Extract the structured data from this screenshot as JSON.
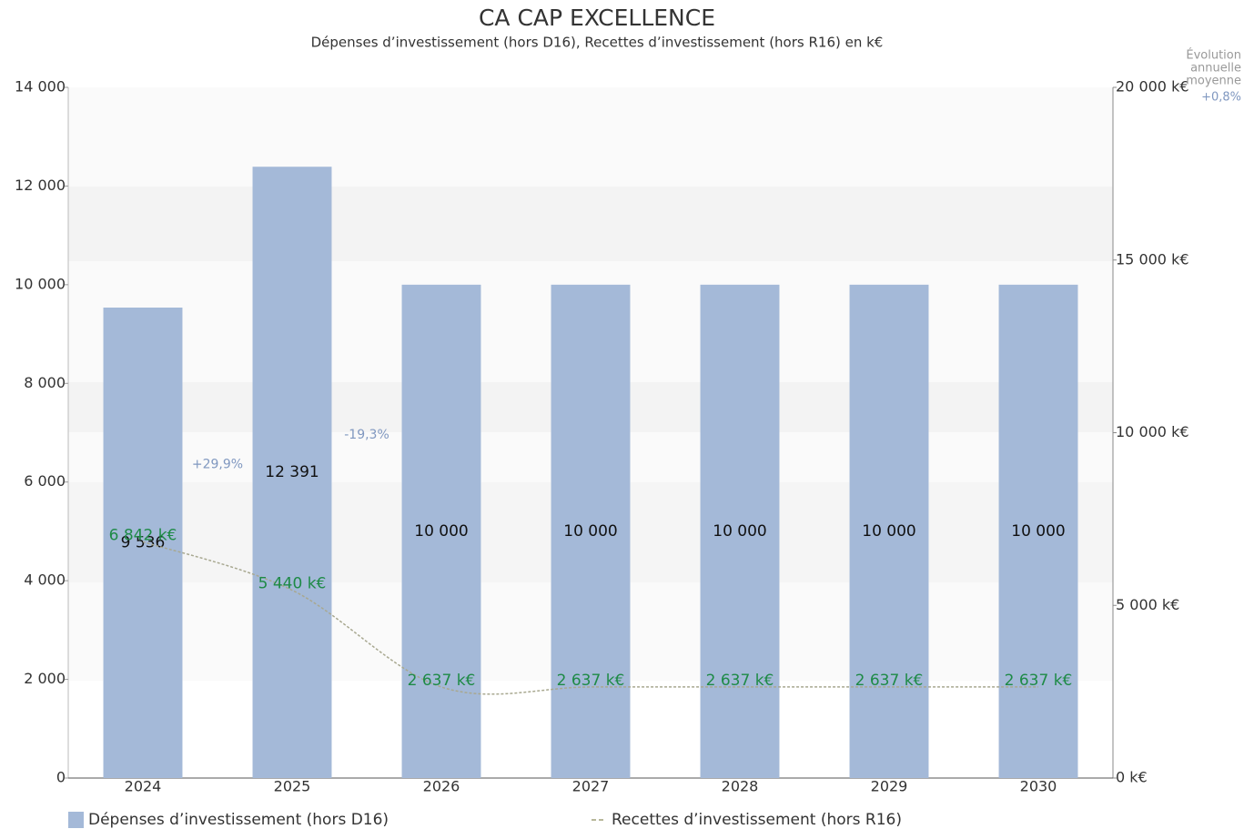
{
  "chart_data": {
    "type": "bar_line",
    "title": "CA CAP EXCELLENCE",
    "subtitle": "Dépenses d’investissement (hors D16), Recettes d’investissement (hors R16) en k€",
    "categories": [
      "2024",
      "2025",
      "2026",
      "2027",
      "2028",
      "2029",
      "2030"
    ],
    "series": [
      {
        "name": "Dépenses d’investissement (hors D16)",
        "color": "#a4b9d8",
        "type": "bar",
        "values": [
          9536,
          12391,
          10000,
          10000,
          10000,
          10000,
          10000
        ],
        "value_labels": [
          "9 536",
          "12 391",
          "10 000",
          "10 000",
          "10 000",
          "10 000",
          "10 000"
        ]
      },
      {
        "name": "Recettes d’investissement (hors R16)",
        "color": "#b8b89a",
        "type": "line",
        "axis": "y2",
        "label_color": "#1e8a46",
        "values": [
          6842,
          5440,
          2637,
          2637,
          2637,
          2637,
          2637
        ],
        "value_labels": [
          "6 842 k€",
          "5 440 k€",
          "2 637 k€",
          "2 637 k€",
          "2 637 k€",
          "2 637 k€",
          "2 637 k€"
        ]
      }
    ],
    "ylim": [
      0,
      14000
    ],
    "yticks": [
      0,
      {
        "value": 2000,
        "label": "2 000"
      },
      {
        "value": 4000,
        "label": "4 000"
      },
      {
        "value": 6000,
        "label": "6 000"
      },
      {
        "value": 8000,
        "label": "8 000"
      },
      {
        "value": 10000,
        "label": "10 000"
      },
      {
        "value": 12000,
        "label": "12 000"
      },
      {
        "value": 14000,
        "label": "14 000"
      }
    ],
    "y2lim": [
      0,
      20000
    ],
    "y2ticks": [
      {
        "value": 0,
        "label": "0 k€"
      },
      {
        "value": 5000,
        "label": "5 000 k€"
      },
      {
        "value": 10000,
        "label": "10 000 k€"
      },
      {
        "value": 15000,
        "label": "15 000 k€"
      },
      {
        "value": 20000,
        "label": "20 000 k€"
      }
    ],
    "growth_labels": [
      "+29,9%",
      "-19,3%"
    ],
    "average_label": [
      "Évolution",
      "annuelle",
      "moyenne"
    ],
    "average_value": "+0,8%",
    "legend": "bottom"
  }
}
